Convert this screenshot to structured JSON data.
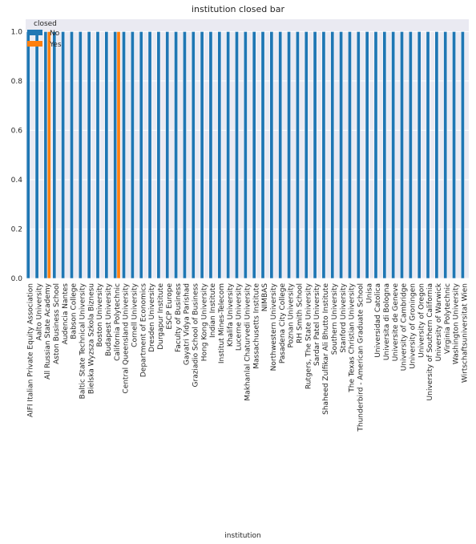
{
  "chart_data": {
    "type": "bar",
    "title": "institution closed bar",
    "xlabel": "institution",
    "ylabel": "",
    "ylim": [
      0,
      1.05
    ],
    "yticks": [
      "0.0",
      "0.2",
      "0.4",
      "0.6",
      "0.8",
      "1.0"
    ],
    "grid": true,
    "legend": {
      "title": "closed",
      "placement": "top-left"
    },
    "categories": [
      "AIFI Italian Private Equity Association",
      "Aalto University",
      "All Russian State Academy",
      "Aston Business School",
      "Audencia Nantes",
      "Babson College",
      "Baltic State Technical University",
      "Bielska Wyzsza Szkola Biznesu",
      "Boston University",
      "Budapest University",
      "California Polytechnic",
      "Central Queensland University",
      "Cornell University",
      "Department of Economics",
      "Dresden University",
      "Durgapur Institute",
      "ESCP Europe",
      "Faculty of Business",
      "Gayatri Vidya Parishad",
      "Graziadio School of Business",
      "Hong Kong University",
      "Indian Institute",
      "Institut Mines-Telecom",
      "Khalifa University",
      "Lucerne University",
      "Makhanlal Chaturvedi University",
      "Massachusetts Institute",
      "NIMBAS",
      "Northwestern University",
      "Pasadena City College",
      "Poznan University",
      "RH Smith School",
      "Rutgers, The State University",
      "Sardar Patel University",
      "Shaheed Zulfikar Ali Bhutto Institute",
      "Southern University",
      "Stanford University",
      "The Texas Christian University",
      "Thunderbird - American Graduate School",
      "Unisa",
      "Universidad Catolica",
      "Universita di Bologna",
      "Universite de Geneve",
      "University of Cambridge",
      "University of Groningen",
      "University of Oregon",
      "University of Southern California",
      "University of Warwick",
      "Virginia Polytechnic",
      "Washington University",
      "Wirtschaftsuniversitat Wien"
    ],
    "series": [
      {
        "name": "No",
        "color": "#1f77b4",
        "values": [
          1,
          1,
          1,
          1,
          1,
          1,
          1,
          1,
          1,
          1,
          1,
          1,
          1,
          1,
          1,
          1,
          1,
          1,
          1,
          1,
          1,
          1,
          1,
          1,
          1,
          1,
          1,
          1,
          1,
          1,
          1,
          1,
          1,
          1,
          1,
          1,
          1,
          1,
          1,
          1,
          1,
          1,
          1,
          1,
          1,
          1,
          1,
          1,
          1,
          1,
          1
        ]
      },
      {
        "name": "Yes",
        "color": "#ff7f0e",
        "values": [
          0,
          0,
          1,
          0,
          0,
          0,
          0,
          0,
          0,
          0,
          1,
          0,
          0,
          0,
          0,
          0,
          0,
          0,
          0,
          0,
          0,
          0,
          0,
          0,
          0,
          0,
          0,
          0,
          0,
          0,
          0,
          0,
          0,
          0,
          0,
          0,
          0,
          0,
          0,
          0,
          0,
          0,
          0,
          0,
          0,
          0,
          0,
          0,
          0,
          0,
          0
        ]
      }
    ]
  }
}
